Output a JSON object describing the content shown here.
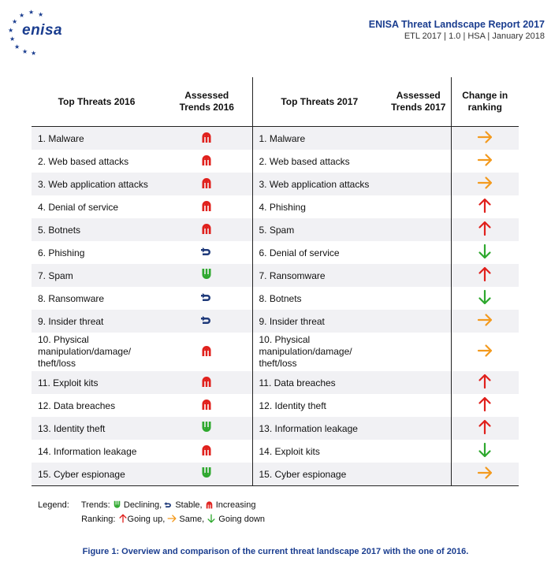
{
  "header": {
    "logo_text": "enisa",
    "title": "ENISA Threat Landscape Report 2017",
    "meta": "ETL 2017  |  1.0  |  HSA  |  January 2018"
  },
  "table": {
    "headers": {
      "top_2016": "Top Threats 2016",
      "trends_2016_line1": "Assessed",
      "trends_2016_line2": "Trends 2016",
      "top_2017": "Top Threats 2017",
      "trends_2017_line1": "Assessed",
      "trends_2017_line2": "Trends 2017",
      "change_line1": "Change in",
      "change_line2": "ranking"
    },
    "rows": [
      {
        "t2016": "1. Malware",
        "trend2016": "increasing",
        "t2017": "1. Malware",
        "change": "same"
      },
      {
        "t2016": "2. Web based attacks",
        "trend2016": "increasing",
        "t2017": "2. Web based attacks",
        "change": "same"
      },
      {
        "t2016": "3. Web application attacks",
        "trend2016": "increasing",
        "t2017": "3. Web application attacks",
        "change": "same"
      },
      {
        "t2016": "4. Denial of service",
        "trend2016": "increasing",
        "t2017": "4. Phishing",
        "change": "up"
      },
      {
        "t2016": "5. Botnets",
        "trend2016": "increasing",
        "t2017": "5. Spam",
        "change": "up"
      },
      {
        "t2016": "6. Phishing",
        "trend2016": "stable",
        "t2017": "6. Denial of service",
        "change": "down"
      },
      {
        "t2016": "7. Spam",
        "trend2016": "declining",
        "t2017": "7. Ransomware",
        "change": "up"
      },
      {
        "t2016": "8. Ransomware",
        "trend2016": "stable",
        "t2017": "8. Botnets",
        "change": "down"
      },
      {
        "t2016": "9. Insider threat",
        "trend2016": "stable",
        "t2017": "9. Insider threat",
        "change": "same"
      },
      {
        "t2016": "10. Physical manipulation/damage/ theft/loss",
        "trend2016": "increasing",
        "t2017": "10. Physical manipulation/damage/ theft/loss",
        "change": "same"
      },
      {
        "t2016": "11. Exploit kits",
        "trend2016": "increasing",
        "t2017": "11. Data breaches",
        "change": "up"
      },
      {
        "t2016": "12. Data breaches",
        "trend2016": "increasing",
        "t2017": "12. Identity theft",
        "change": "up"
      },
      {
        "t2016": "13. Identity theft",
        "trend2016": "declining",
        "t2017": "13. Information leakage",
        "change": "up"
      },
      {
        "t2016": "14. Information leakage",
        "trend2016": "increasing",
        "t2017": "14. Exploit kits",
        "change": "down"
      },
      {
        "t2016": "15. Cyber espionage",
        "trend2016": "declining",
        "t2017": "15. Cyber espionage",
        "change": "same"
      }
    ]
  },
  "legend": {
    "label": "Legend:",
    "trends_label": "Trends:",
    "declining": "Declining,",
    "stable": "Stable,",
    "increasing": "Increasing",
    "ranking_label": "Ranking:",
    "going_up": "Going up,",
    "same": "Same,",
    "going_down": "Going down"
  },
  "caption": "Figure 1: Overview and comparison of the current threat landscape 2017 with the one of 2016.",
  "colors": {
    "brand": "#1a3d8f",
    "increasing": "#e0201c",
    "declining": "#2ea82e",
    "stable": "#1f3a7a",
    "up": "#e0201c",
    "same": "#f39a1e",
    "down": "#2ea82e"
  }
}
